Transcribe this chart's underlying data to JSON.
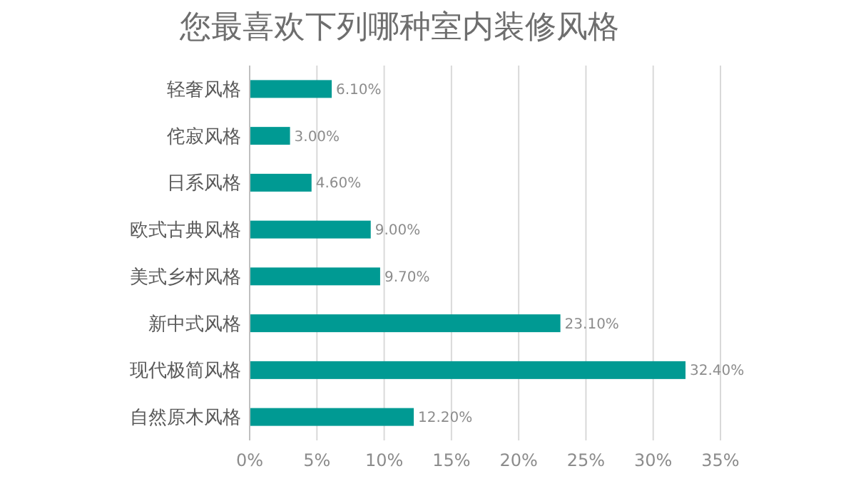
{
  "chart_data": {
    "type": "bar",
    "orientation": "horizontal",
    "title": "您最喜欢下列哪种室内装修风格",
    "categories": [
      "轻奢风格",
      "侘寂风格",
      "日系风格",
      "欧式古典风格",
      "美式乡村风格",
      "新中式风格",
      "现代极简风格",
      "自然原木风格"
    ],
    "values": [
      6.1,
      3.0,
      4.6,
      9.0,
      9.7,
      23.1,
      32.4,
      12.2
    ],
    "value_labels": [
      "6.10%",
      "3.00%",
      "4.60%",
      "9.00%",
      "9.70%",
      "23.10%",
      "32.40%",
      "12.20%"
    ],
    "color": "#009a93",
    "xlim": [
      0,
      35
    ],
    "xticks": [
      {
        "value": 0,
        "label": "0%"
      },
      {
        "value": 5,
        "label": "5%"
      },
      {
        "value": 10,
        "label": "10%"
      },
      {
        "value": 15,
        "label": "15%"
      },
      {
        "value": 20,
        "label": "20%"
      },
      {
        "value": 25,
        "label": "25%"
      },
      {
        "value": 30,
        "label": "30%"
      },
      {
        "value": 35,
        "label": "35%"
      }
    ],
    "grid": "x"
  }
}
